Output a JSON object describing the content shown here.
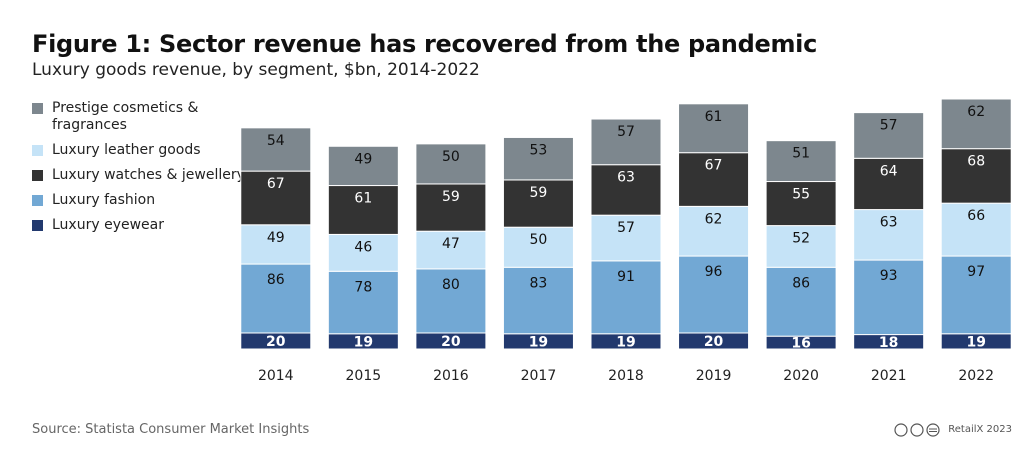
{
  "chart_data": {
    "type": "stacked_bar",
    "title": "Figure 1: Sector revenue has recovered from the pandemic",
    "subtitle": "Luxury goods revenue, by segment, $bn, 2014-2022",
    "categories": [
      "2014",
      "2015",
      "2016",
      "2017",
      "2018",
      "2019",
      "2020",
      "2021",
      "2022"
    ],
    "series": [
      {
        "name": "Prestige cosmetics & fragrances",
        "color": "#7d878e",
        "values": [
          54,
          49,
          50,
          53,
          57,
          61,
          51,
          57,
          62
        ]
      },
      {
        "name": "Luxury leather goods",
        "color": "#c5e3f7",
        "values": [
          49,
          46,
          47,
          50,
          57,
          62,
          52,
          63,
          66
        ]
      },
      {
        "name": "Luxury watches & jewellery",
        "color": "#333333",
        "values": [
          67,
          61,
          59,
          59,
          63,
          67,
          55,
          64,
          68
        ]
      },
      {
        "name": "Luxury fashion",
        "color": "#72a8d4",
        "values": [
          86,
          78,
          80,
          83,
          91,
          96,
          86,
          93,
          97
        ]
      },
      {
        "name": "Luxury eyewear",
        "color": "#22396e",
        "values": [
          20,
          19,
          20,
          19,
          19,
          20,
          16,
          18,
          19
        ]
      }
    ],
    "source": "Source: Statista Consumer Market Insights",
    "credit": "RetailX 2023"
  }
}
